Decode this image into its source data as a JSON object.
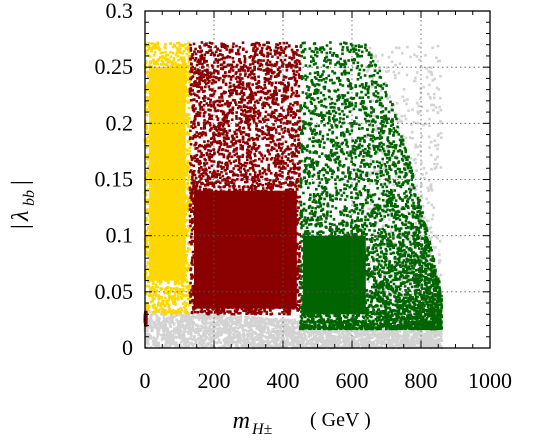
{
  "chart_data": {
    "type": "scatter",
    "xlabel": "m_{H±}",
    "xlabel_unit": "( GeV )",
    "ylabel": "|λ_{bb}|",
    "xlim": [
      0,
      1000
    ],
    "ylim": [
      0,
      0.3
    ],
    "x_ticks": [
      0,
      200,
      400,
      600,
      800,
      1000
    ],
    "x_tick_labels": [
      "0",
      "200",
      "400",
      "600",
      "800",
      "1000"
    ],
    "y_ticks": [
      0,
      0.05,
      0.1,
      0.15,
      0.2,
      0.25,
      0.3
    ],
    "y_tick_labels": [
      "0",
      "0.05",
      "0.1",
      "0.15",
      "0.2",
      "0.25",
      "0.3"
    ],
    "grid": "dotted",
    "legend": "none",
    "series": [
      {
        "color": "#d3d3d3",
        "region": {
          "x_range": [
            0,
            850
          ],
          "y_lower": [
            0,
            0.032,
            850,
            0.016
          ],
          "y_upper_max": 0.27
        }
      },
      {
        "color": "#ffd700",
        "region": {
          "x_range": [
            0,
            130
          ],
          "y_range": [
            0.03,
            0.272
          ]
        }
      },
      {
        "color": "#8b0000",
        "region": {
          "x_range": [
            130,
            450
          ],
          "y_range": [
            0.03,
            0.272
          ]
        }
      },
      {
        "color": "#006400",
        "region": {
          "x_range": [
            450,
            860
          ],
          "y_range": [
            0.017,
            0.272
          ],
          "upper_edge": [
            [
              450,
              0.272
            ],
            [
              640,
              0.272
            ],
            [
              700,
              0.235
            ],
            [
              760,
              0.175
            ],
            [
              810,
              0.115
            ],
            [
              860,
              0.05
            ]
          ]
        }
      }
    ]
  }
}
